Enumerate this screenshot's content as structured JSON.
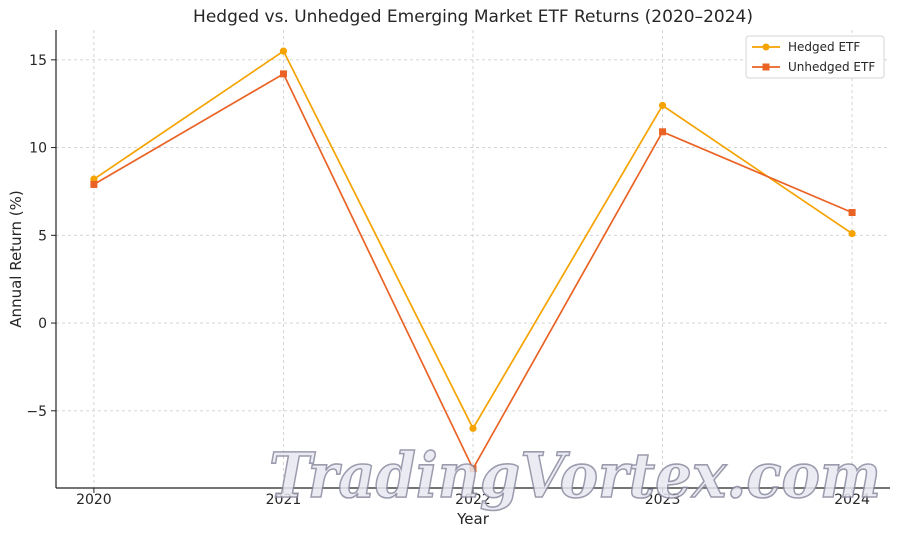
{
  "chart_data": {
    "type": "line",
    "title": "Hedged vs. Unhedged Emerging Market ETF Returns (2020–2024)",
    "xlabel": "Year",
    "ylabel": "Annual Return (%)",
    "categories": [
      "2020",
      "2021",
      "2022",
      "2023",
      "2024"
    ],
    "x": [
      2020,
      2021,
      2022,
      2023,
      2024
    ],
    "y_ticks": [
      -5,
      0,
      5,
      10,
      15
    ],
    "y_tick_labels": [
      "−5",
      "0",
      "5",
      "10",
      "15"
    ],
    "ylim": [
      -9.4,
      16.7
    ],
    "xlim": [
      2019.8,
      2024.2
    ],
    "grid": true,
    "legend_position": "top-right",
    "series": [
      {
        "name": "Hedged ETF",
        "values": [
          8.2,
          15.5,
          -6.0,
          12.4,
          5.1
        ],
        "color": "#f5a300",
        "marker": "circle"
      },
      {
        "name": "Unhedged ETF",
        "values": [
          7.9,
          14.2,
          -8.3,
          10.9,
          6.3
        ],
        "color": "#ea6325",
        "marker": "square"
      }
    ]
  },
  "watermark": {
    "text": "TradingVortex.com"
  }
}
